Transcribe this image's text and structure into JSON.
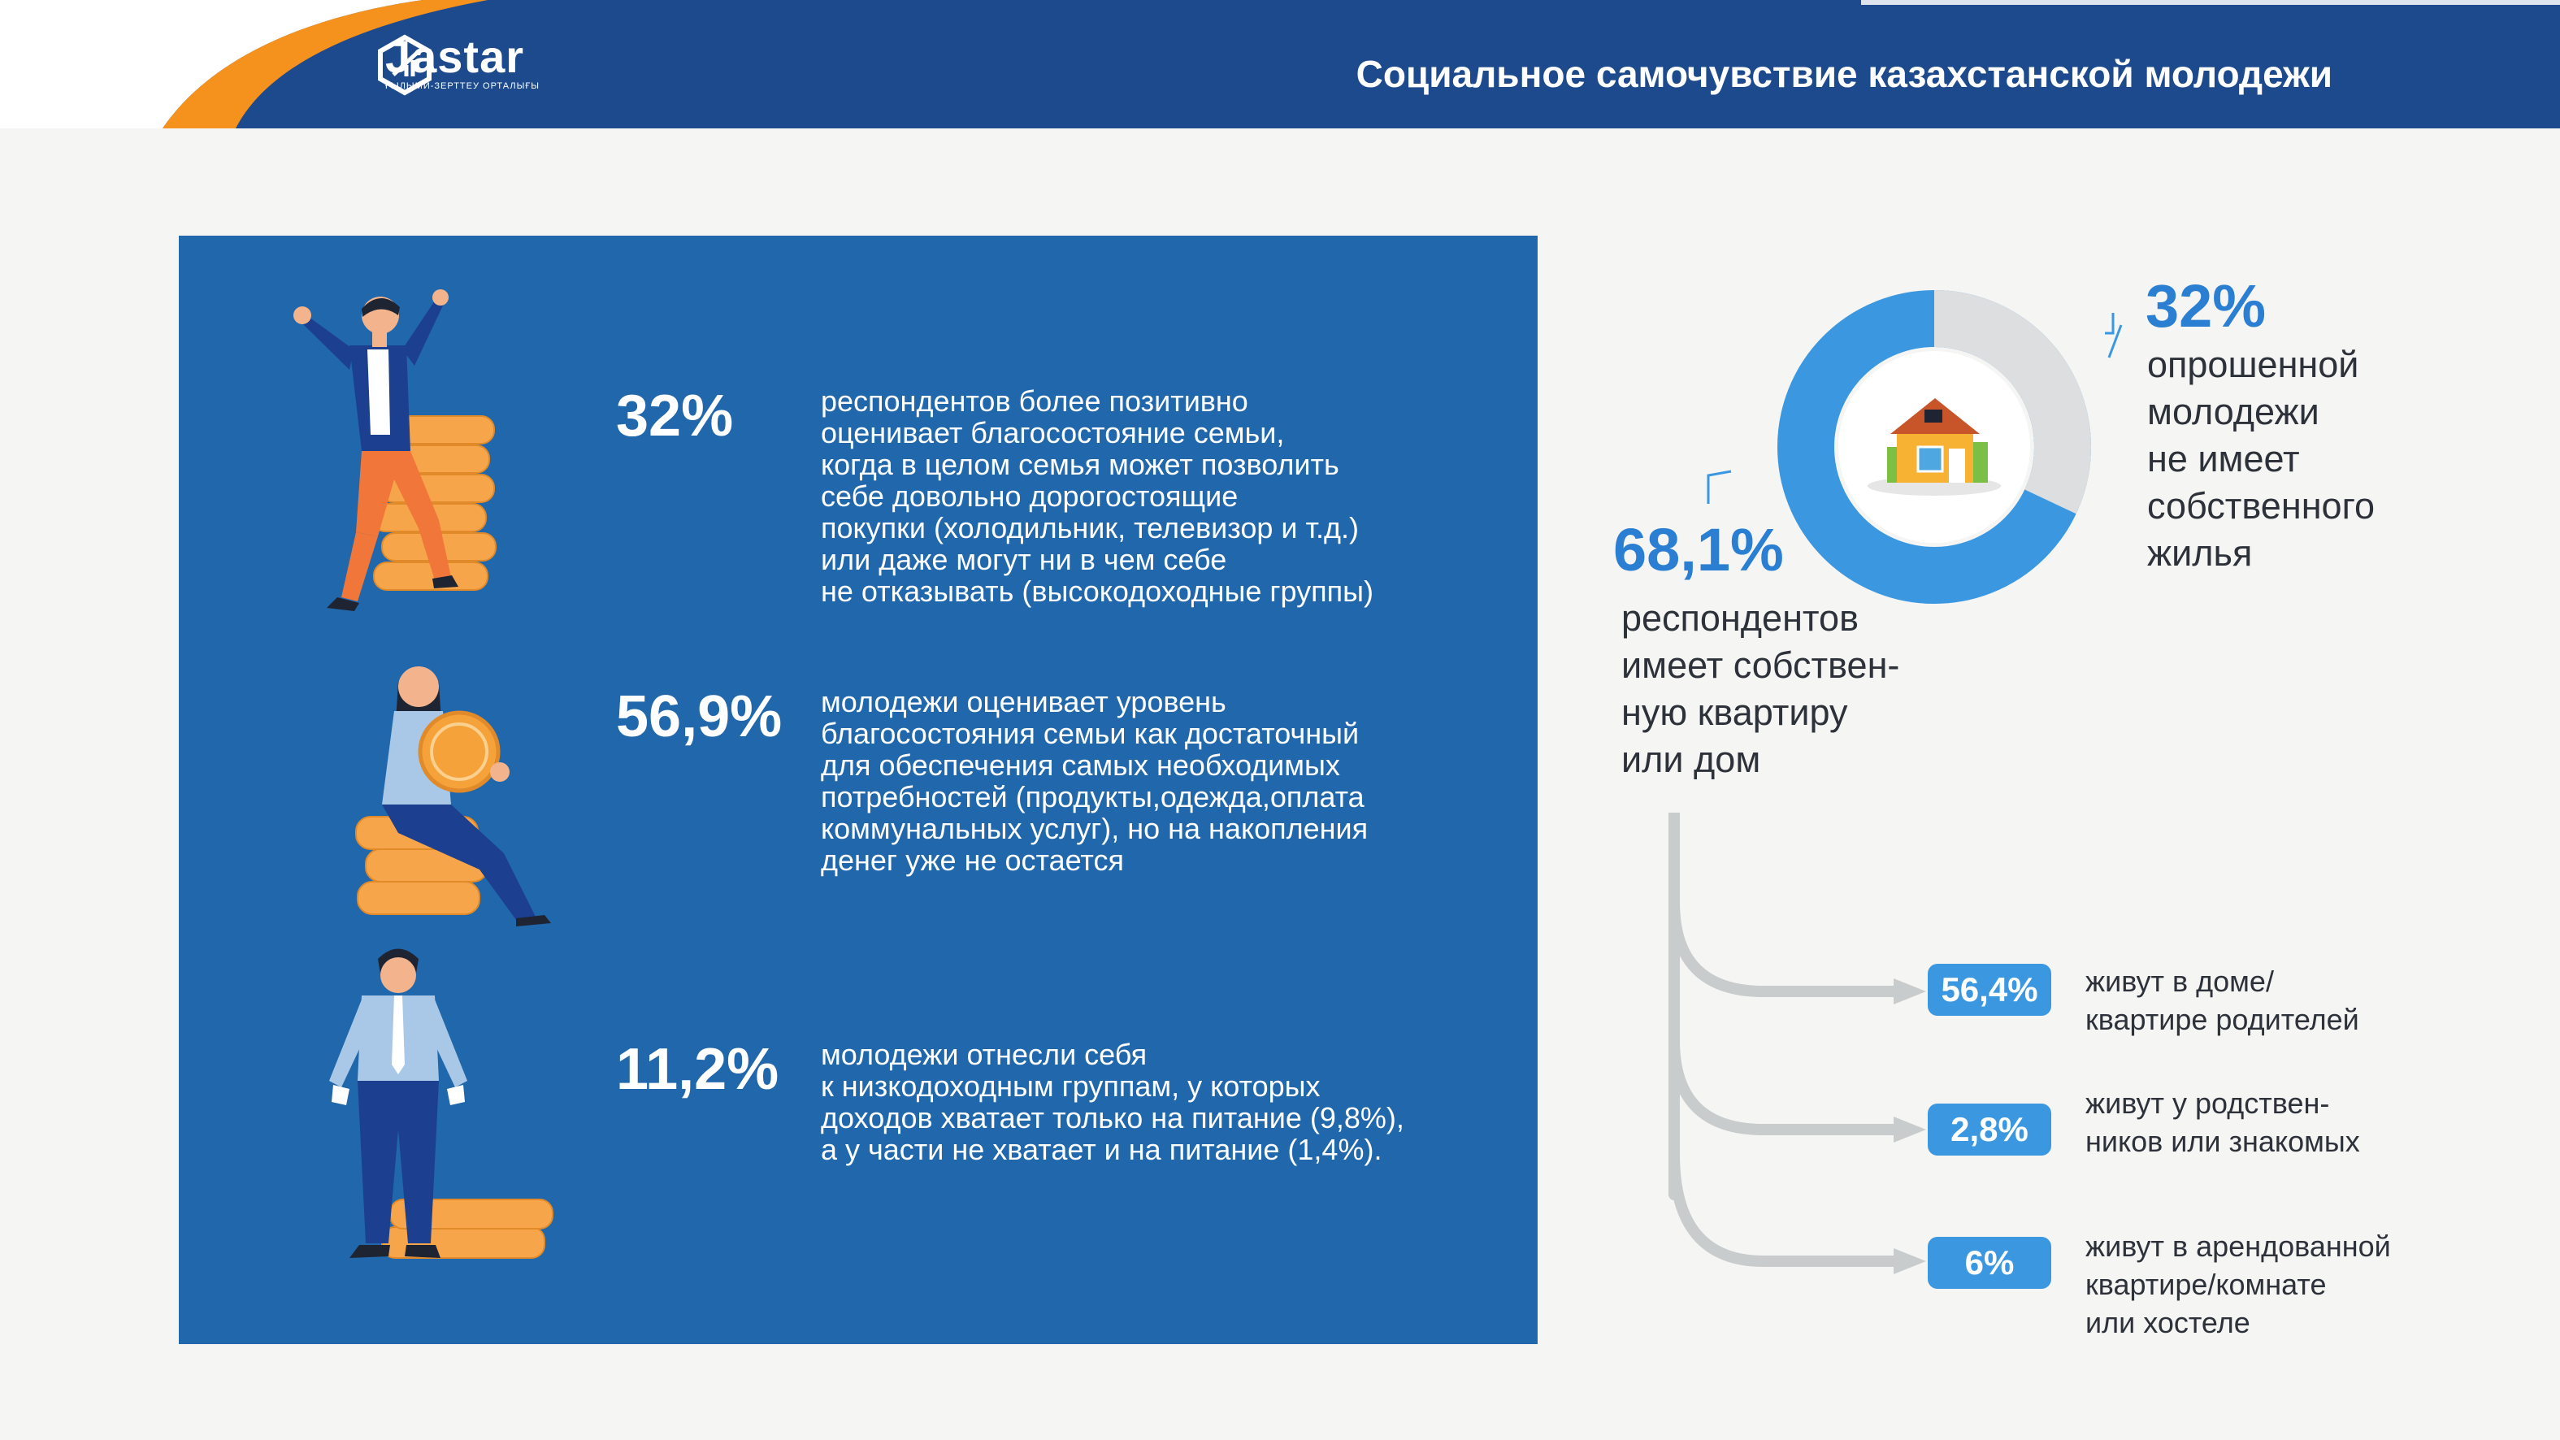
{
  "header": {
    "title": "Социальное самочувствие казахстанской молодежи",
    "logo_name": "Jastar",
    "logo_sub": "ҒЫЛЫМИ-ЗЕРТТЕУ ОРТАЛЫҒЫ",
    "colors": {
      "navy": "#1c4a8c",
      "orange": "#f5921e",
      "panel_blue": "#2167ab",
      "accent_blue": "#3b98e0"
    }
  },
  "stats": [
    {
      "percent": "32%",
      "text_lines": [
        "респондентов более позитивно",
        "оценивает благосостояние семьи,",
        "когда в целом семья может позволить",
        "себе довольно дорогостоящие",
        "покупки (холодильник, телевизор и т.д.)",
        "или даже могут ни в чем себе",
        "не отказывать (высокодоходные группы)"
      ]
    },
    {
      "percent": "56,9%",
      "text_lines": [
        "молодежи оценивает уровень",
        "благосостояния семьи как достаточный",
        "для обеспечения самых необходимых",
        "потребностей (продукты,одежда,оплата",
        "коммунальных услуг), но на накопления",
        "денег уже не остается"
      ]
    },
    {
      "percent": "11,2%",
      "text_lines": [
        "молодежи отнесли себя",
        "к низкодоходным группам, у которых",
        "доходов хватает только на питание (9,8%),",
        "а у части не хватает и на питание (1,4%)."
      ]
    }
  ],
  "housing": {
    "no_home": {
      "percent": "32%",
      "value": 32,
      "lines": [
        "опрошенной",
        "молодежи",
        "не имеет",
        "собственного",
        "жилья"
      ]
    },
    "own_home": {
      "percent": "68,1%",
      "value": 68.1,
      "lines": [
        "респондентов",
        "имеет собствен-",
        "ную квартиру",
        "или дом"
      ]
    },
    "options": [
      {
        "percent": "56,4%",
        "lines": [
          "живут в доме/",
          "квартире родителей"
        ]
      },
      {
        "percent": "2,8%",
        "lines": [
          "живут у родствен-",
          "ников или знакомых"
        ]
      },
      {
        "percent": "6%",
        "lines": [
          "живут в арендованной",
          "квартире/комнате",
          "или  хостеле"
        ]
      }
    ]
  }
}
